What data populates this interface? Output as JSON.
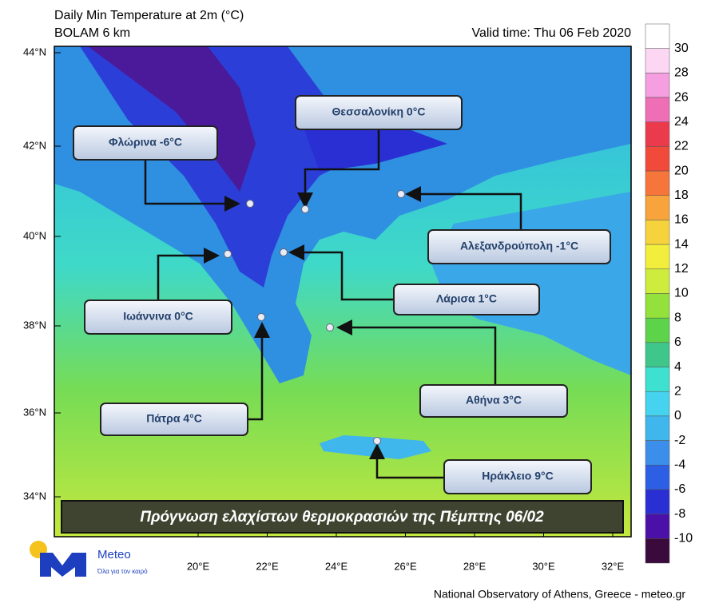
{
  "header": {
    "title": "Daily Min Temperature at 2m (°C)",
    "model": "BOLAM 6 km",
    "valid_time": "Valid time: Thu 06 Feb 2020"
  },
  "latitude_labels": [
    "44°N",
    "42°N",
    "40°N",
    "38°N",
    "36°N",
    "34°N"
  ],
  "longitude_labels": [
    "20°E",
    "22°E",
    "24°E",
    "26°E",
    "28°E",
    "30°E",
    "32°E"
  ],
  "cities": [
    "Φλώρινα -6°C",
    "Θεσσαλονίκη 0°C",
    "Αλεξανδρούπολη -1°C",
    "Ιωάννινα 0°C",
    "Λάρισα 1°C",
    "Αθήνα 3°C",
    "Πάτρα 4°C",
    "Ηράκλειο 9°C"
  ],
  "banner": "Πρόγνωση ελαχίστων θερμοκρασιών της Πέμπτης 06/02",
  "colorbar": {
    "labels": [
      "30",
      "28",
      "26",
      "24",
      "22",
      "20",
      "18",
      "16",
      "14",
      "12",
      "10",
      "8",
      "6",
      "4",
      "2",
      "0",
      "-2",
      "-4",
      "-6",
      "-8",
      "-10"
    ],
    "colors": [
      "#ffffff",
      "#fbd7f4",
      "#f59ee0",
      "#ee6fb5",
      "#ec3a4d",
      "#f14a3a",
      "#f6753a",
      "#f9a33c",
      "#f6d33c",
      "#f2ef3c",
      "#cdec3d",
      "#94e13b",
      "#5cd34a",
      "#3fc68b",
      "#3ee0d0",
      "#45d3ef",
      "#3fb7ec",
      "#3b8ee9",
      "#2c5fe3",
      "#2a2fd3",
      "#4a10a8",
      "#3a0a3c"
    ]
  },
  "logo": {
    "name": "Meteo",
    "tagline": "Όλα για τον καιρό"
  },
  "footer": "National Observatory of Athens, Greece - meteo.gr"
}
